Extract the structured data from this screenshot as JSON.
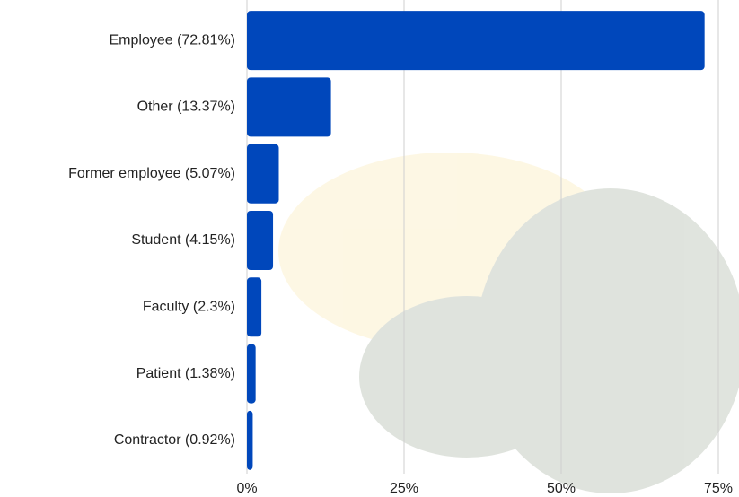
{
  "chart_data": {
    "type": "bar",
    "orientation": "horizontal",
    "categories": [
      "Employee (72.81%)",
      "Other (13.37%)",
      "Former employee (5.07%)",
      "Student (4.15%)",
      "Faculty (2.3%)",
      "Patient (1.38%)",
      "Contractor (0.92%)"
    ],
    "values": [
      72.81,
      13.37,
      5.07,
      4.15,
      2.3,
      1.38,
      0.92
    ],
    "color": "#0047bb",
    "xlim": [
      0,
      75
    ],
    "xticks": [
      {
        "value": 0,
        "label": "0%"
      },
      {
        "value": 25,
        "label": "25%"
      },
      {
        "value": 50,
        "label": "50%"
      },
      {
        "value": 75,
        "label": "75%"
      }
    ],
    "grid": true
  }
}
